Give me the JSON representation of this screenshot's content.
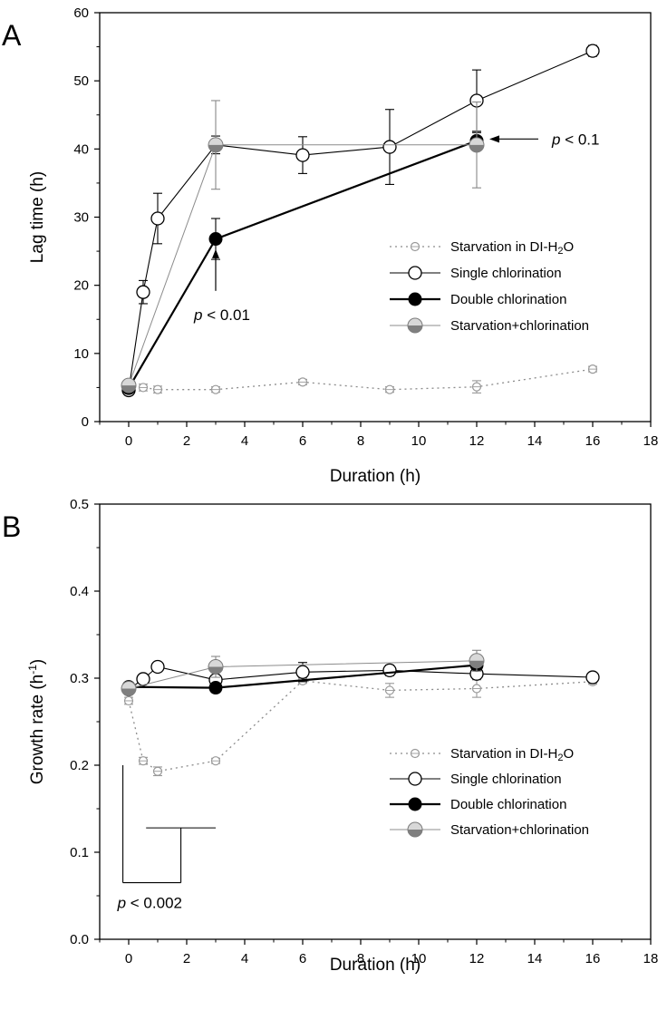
{
  "colors": {
    "single": "#000000",
    "double": "#000000",
    "starve_chl": "#7f7f7f",
    "starve_chl_line": "#8c8c8c",
    "di_marker": "#999999",
    "di_line": "#8c8c8c"
  },
  "chart_data": [
    {
      "type": "line",
      "panel_label": "A",
      "xlabel": "Duration (h)",
      "ylabel": "Lag time (h)",
      "xlim": [
        -1,
        18
      ],
      "ylim": [
        0,
        60
      ],
      "xticks": [
        0,
        2,
        4,
        6,
        8,
        10,
        12,
        14,
        16,
        18
      ],
      "yticks": [
        0,
        10,
        20,
        30,
        40,
        50,
        60
      ],
      "x_tick_labels": [
        "0",
        "2",
        "4",
        "6",
        "8",
        "10",
        "12",
        "14",
        "16",
        "18"
      ],
      "y_tick_labels": [
        "0",
        "10",
        "20",
        "30",
        "40",
        "50",
        "60"
      ],
      "series": [
        {
          "name": "Starvation in DI-H2O",
          "legend_main": "Starvation in DI-H",
          "legend_sub": "2",
          "legend_tail": "O",
          "style": "di",
          "x": [
            0,
            0.5,
            1,
            3,
            6,
            9,
            12,
            16
          ],
          "y": [
            4.4,
            5.0,
            4.7,
            4.7,
            5.8,
            4.7,
            5.1,
            7.7
          ],
          "err": [
            0.4,
            0.5,
            0.5,
            0.4,
            0.4,
            0.4,
            0.9,
            0.4
          ]
        },
        {
          "name": "Single chlorination",
          "style": "single",
          "x": [
            0,
            0.5,
            1,
            3,
            6,
            9,
            12,
            16
          ],
          "y": [
            4.6,
            19.0,
            29.8,
            40.6,
            39.1,
            40.3,
            47.1,
            54.4
          ],
          "err": [
            0.6,
            1.7,
            3.7,
            1.3,
            2.7,
            5.5,
            4.5,
            0.8
          ]
        },
        {
          "name": "Double chlorination",
          "style": "double",
          "x": [
            0,
            3,
            12
          ],
          "y": [
            4.9,
            26.8,
            41.2
          ],
          "err": [
            0.5,
            3.0,
            1.2
          ]
        },
        {
          "name": "Starvation+chlorination",
          "style": "starve_chl",
          "x": [
            0,
            3,
            12
          ],
          "y": [
            5.3,
            40.6,
            40.6
          ],
          "err": [
            0.4,
            6.5,
            6.3
          ]
        }
      ],
      "annotations": [
        {
          "italic": "p",
          "rest": " < 0.01",
          "at_x": 3,
          "arrow_to_y": 25.3
        },
        {
          "italic": "p",
          "rest": " < 0.1",
          "at_x": 12,
          "arrow_to_y": 41.2
        }
      ],
      "legend_position": "center-right"
    },
    {
      "type": "line",
      "panel_label": "B",
      "xlabel": "Duration (h)",
      "ylabel": "Growth rate (h",
      "ylabel_sup": "-1",
      "ylabel_close": ")",
      "xlim": [
        -1,
        18
      ],
      "ylim": [
        0,
        0.5
      ],
      "xticks": [
        0,
        2,
        4,
        6,
        8,
        10,
        12,
        14,
        16,
        18
      ],
      "yticks": [
        0,
        0.1,
        0.2,
        0.3,
        0.4,
        0.5
      ],
      "x_tick_labels": [
        "0",
        "2",
        "4",
        "6",
        "8",
        "10",
        "12",
        "14",
        "16",
        "18"
      ],
      "y_tick_labels": [
        "0.0",
        "0.1",
        "0.2",
        "0.3",
        "0.4",
        "0.5"
      ],
      "series": [
        {
          "name": "Starvation in DI-H2O",
          "legend_main": "Starvation in DI-H",
          "legend_sub": "2",
          "legend_tail": "O",
          "style": "di",
          "x": [
            0,
            0.5,
            1,
            3,
            6,
            9,
            12,
            16
          ],
          "y": [
            0.274,
            0.205,
            0.193,
            0.205,
            0.297,
            0.286,
            0.288,
            0.296
          ],
          "err": [
            0.004,
            0.004,
            0.005,
            0.003,
            0.003,
            0.008,
            0.01,
            0.003
          ]
        },
        {
          "name": "Single chlorination",
          "style": "single",
          "x": [
            0,
            0.5,
            1,
            3,
            6,
            9,
            12,
            16
          ],
          "y": [
            0.287,
            0.299,
            0.313,
            0.298,
            0.307,
            0.309,
            0.305,
            0.301
          ],
          "err": [
            0.004,
            0.003,
            0.004,
            0.004,
            0.011,
            0.006,
            0.006,
            0.003
          ]
        },
        {
          "name": "Double chlorination",
          "style": "double",
          "x": [
            0,
            3,
            12
          ],
          "y": [
            0.29,
            0.289,
            0.315
          ],
          "err": [
            0.004,
            0.003,
            0.003
          ]
        },
        {
          "name": "Starvation+chlorination",
          "style": "starve_chl",
          "x": [
            0,
            3,
            12
          ],
          "y": [
            0.288,
            0.313,
            0.32
          ],
          "err": [
            0.004,
            0.012,
            0.012
          ]
        }
      ],
      "annotations": [
        {
          "italic": "p",
          "rest": " < 0.002",
          "type": "bracket",
          "bracket_left_x": -0.2,
          "bracket_right_x": 1.8,
          "bracket_top_left_y": 0.2,
          "bracket_top_right_y": 0.128,
          "bracket_bottom_y": 0.065,
          "bar_from_x": 0.6,
          "bar_to_x": 3.0
        }
      ],
      "legend_position": "center-right"
    }
  ]
}
